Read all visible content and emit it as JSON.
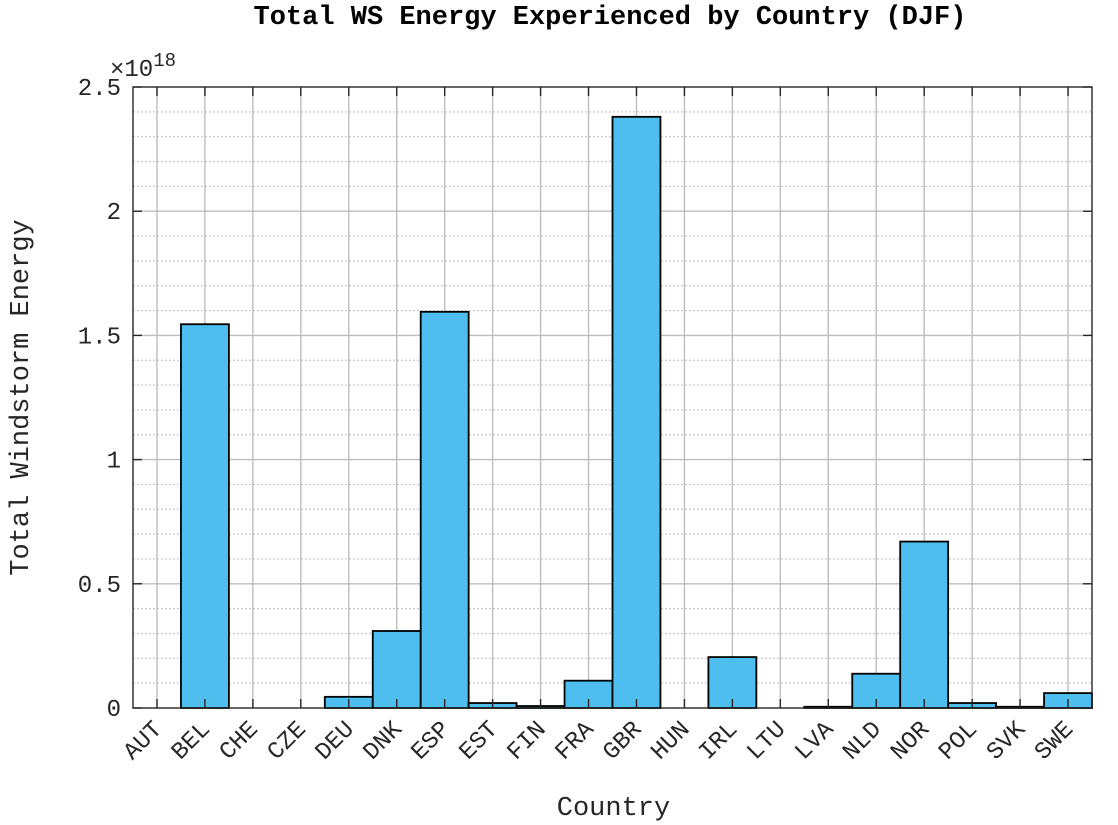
{
  "chart_data": {
    "type": "bar",
    "title": "Total WS Energy Experienced by Country (DJF)",
    "xlabel": "Country",
    "ylabel": "Total Windstorm Energy",
    "y_exponent_label": "×10",
    "y_exponent_power": "18",
    "y_scale": 1e+18,
    "ylim": [
      0,
      2.5
    ],
    "yticks": [
      0,
      0.5,
      1,
      1.5,
      2,
      2.5
    ],
    "ytick_labels": [
      "0",
      "0.5",
      "1",
      "1.5",
      "2",
      "2.5"
    ],
    "minor_y_step": 0.1,
    "grid": true,
    "bar_color": "#4DBEEE",
    "categories": [
      "AUT",
      "BEL",
      "CHE",
      "CZE",
      "DEU",
      "DNK",
      "ESP",
      "EST",
      "FIN",
      "FRA",
      "GBR",
      "HUN",
      "IRL",
      "LTU",
      "LVA",
      "NLD",
      "NOR",
      "POL",
      "SVK",
      "SWE"
    ],
    "values": [
      0,
      1.545,
      0,
      0,
      0.045,
      0.31,
      1.595,
      0.02,
      0.008,
      0.11,
      2.38,
      0,
      0.205,
      0,
      0.005,
      0.138,
      0.67,
      0.02,
      0.005,
      0.06
    ]
  }
}
